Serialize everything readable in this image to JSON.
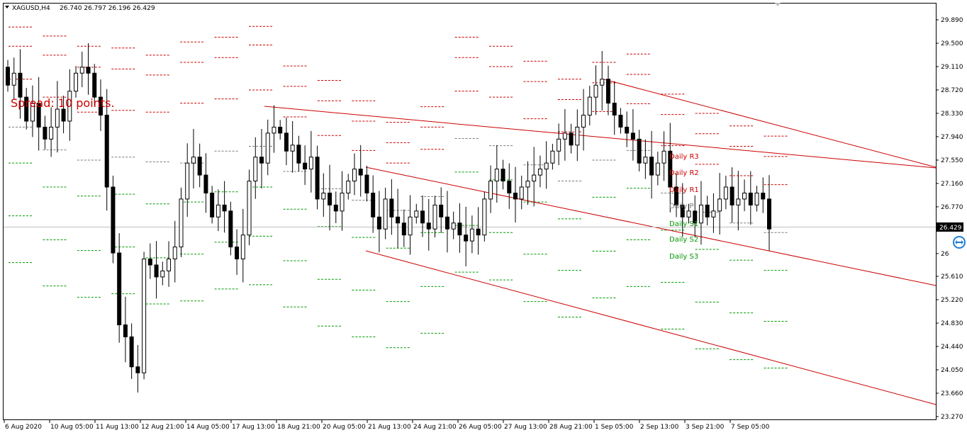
{
  "header": {
    "symbol": "XAGUSD,H4",
    "ohlc": "26.740 26.797 26.196 26.429"
  },
  "spread_label": "Spread: 10 points.",
  "current_price_label": "26.429",
  "pivot_labels": {
    "r3": "Daily R3",
    "r2": "Daily R2",
    "r1": "Daily R1",
    "p": "Daily P",
    "s1": "Daily S1",
    "s2": "Daily S2",
    "s3": "Daily S3"
  },
  "icon": "teamviewer-icon",
  "colors": {
    "resistance": "#cc0000",
    "support": "#009900",
    "channel": "#cc0000",
    "bull_body": "#ffffff",
    "bear_body": "#000000",
    "price_line": "#c0c0c0",
    "price_tag_bg": "#000000"
  },
  "chart_data": {
    "type": "candlestick",
    "symbol": "XAGUSD",
    "timeframe": "H4",
    "y_ticks": [
      29.89,
      29.5,
      29.11,
      28.72,
      28.33,
      27.94,
      27.55,
      27.16,
      26.77,
      26.38,
      25.99,
      25.61,
      25.22,
      24.83,
      24.44,
      24.05,
      23.66,
      23.27
    ],
    "y_tick_labels": [
      "29.890",
      "29.500",
      "29.110",
      "28.720",
      "28.330",
      "27.940",
      "27.550",
      "27.160",
      "26.770",
      "",
      "26",
      "25.610",
      "25.220",
      "24.830",
      "24.440",
      "24.050",
      "23.660",
      "23.270"
    ],
    "x_tick_labels": [
      "6 Aug 2020",
      "10 Aug 05:00",
      "11 Aug 13:00",
      "12 Aug 21:00",
      "14 Aug 05:00",
      "17 Aug 13:00",
      "18 Aug 21:00",
      "20 Aug 05:00",
      "21 Aug 13:00",
      "24 Aug 21:00",
      "26 Aug 05:00",
      "27 Aug 13:00",
      "28 Aug 21:00",
      "1 Sep 05:00",
      "2 Sep 13:00",
      "3 Sep 21:00",
      "7 Sep 05:00"
    ],
    "current_price": 26.429,
    "closes": [
      28.8,
      29.0,
      28.6,
      28.2,
      28.5,
      28.1,
      27.9,
      28.1,
      28.4,
      28.2,
      28.7,
      29.0,
      29.1,
      29.0,
      28.6,
      28.3,
      27.1,
      26.0,
      24.8,
      24.6,
      24.1,
      24.0,
      25.9,
      25.8,
      25.6,
      25.7,
      25.9,
      26.1,
      26.9,
      27.5,
      27.6,
      27.3,
      27.0,
      26.6,
      26.8,
      26.7,
      26.1,
      25.9,
      26.3,
      27.2,
      27.6,
      27.5,
      28.0,
      28.1,
      28.0,
      27.7,
      27.8,
      27.5,
      27.4,
      27.6,
      26.9,
      27.0,
      26.8,
      26.7,
      27.0,
      27.2,
      27.4,
      27.3,
      27.0,
      26.6,
      26.4,
      26.9,
      26.6,
      26.5,
      26.3,
      26.6,
      26.7,
      26.5,
      26.4,
      26.8,
      26.6,
      26.4,
      26.5,
      26.3,
      26.2,
      26.4,
      26.3,
      26.9,
      27.2,
      27.4,
      27.2,
      27.0,
      26.9,
      27.1,
      27.2,
      27.3,
      27.4,
      27.5,
      27.7,
      27.9,
      28.0,
      27.8,
      28.1,
      28.3,
      28.6,
      28.8,
      28.9,
      28.5,
      28.3,
      28.1,
      28.0,
      27.9,
      27.5,
      27.6,
      27.3,
      27.5,
      27.7,
      27.1,
      26.8,
      26.6,
      26.7,
      26.5,
      26.8,
      26.6,
      26.7,
      26.9,
      27.1,
      26.8,
      26.9,
      27.0,
      26.8,
      27.0,
      26.9,
      26.4
    ]
  },
  "pivots": {
    "r3": [
      29.77,
      29.62,
      29.45,
      29.42,
      29.3,
      29.52,
      29.6,
      29.78,
      29.12,
      28.88,
      28.54,
      28.18,
      28.44,
      29.6,
      29.45,
      29.2,
      28.9,
      29.18,
      29.32,
      28.65,
      28.33,
      28.12,
      27.95
    ],
    "r2": [
      29.45,
      29.3,
      29.1,
      29.07,
      28.97,
      29.18,
      29.26,
      29.47,
      28.78,
      28.54,
      28.2,
      27.84,
      28.1,
      29.26,
      29.11,
      28.86,
      28.56,
      28.84,
      28.98,
      28.31,
      27.99,
      27.78,
      27.61
    ],
    "r1": [
      28.9,
      28.6,
      28.35,
      28.38,
      28.35,
      28.5,
      28.57,
      28.72,
      28.27,
      27.96,
      27.71,
      27.5,
      27.73,
      28.7,
      28.6,
      28.24,
      28.02,
      28.36,
      28.49,
      27.79,
      27.48,
      27.29,
      27.14
    ],
    "p": [
      28.1,
      27.72,
      27.55,
      27.6,
      27.52,
      27.5,
      27.7,
      27.78,
      27.36,
      27.07,
      26.88,
      26.71,
      26.94,
      27.91,
      27.79,
      27.47,
      27.2,
      27.55,
      27.71,
      27.0,
      26.68,
      26.5,
      26.34
    ],
    "s1": [
      27.5,
      27.1,
      26.95,
      26.98,
      26.82,
      26.85,
      27.02,
      27.1,
      26.73,
      26.44,
      26.26,
      26.08,
      26.34,
      27.35,
      27.22,
      26.85,
      26.57,
      26.93,
      27.08,
      26.38,
      26.06,
      25.88,
      25.71
    ],
    "s2": [
      26.62,
      26.22,
      26.04,
      26.1,
      25.92,
      25.98,
      26.18,
      26.28,
      25.87,
      25.56,
      25.38,
      25.19,
      25.44,
      26.46,
      26.34,
      25.98,
      25.71,
      26.03,
      26.22,
      25.51,
      25.18,
      25.0,
      24.86
    ],
    "s3": [
      25.84,
      25.45,
      25.26,
      25.32,
      25.15,
      25.2,
      25.4,
      25.47,
      25.1,
      24.78,
      24.6,
      24.42,
      24.66,
      25.68,
      25.55,
      25.19,
      24.93,
      25.25,
      25.44,
      24.73,
      24.4,
      24.22,
      24.08
    ]
  }
}
